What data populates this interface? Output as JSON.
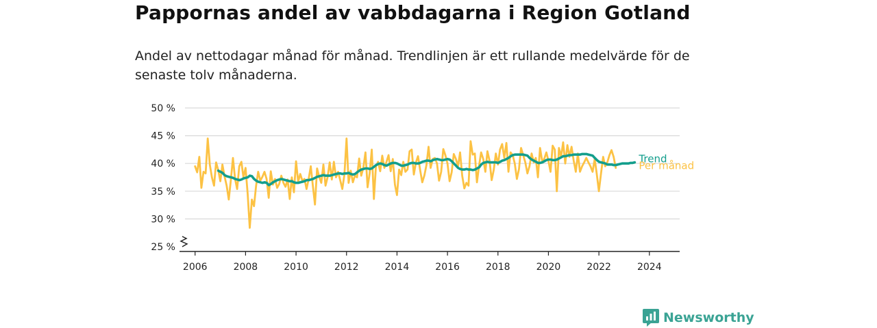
{
  "colors": {
    "monthly": "#fcc244",
    "trend": "#139e8c",
    "grid": "#d9d9d9",
    "axis": "#222222",
    "brand": "#3aa394"
  },
  "brand": {
    "name": "Newsworthy"
  },
  "chart_data": {
    "type": "line",
    "title": "Pappornas andel av vabbdagarna i Region Gotland",
    "subtitle": "Andel av nettodagar månad för månad. Trendlinjen är ett rullande medelvärde för de senaste tolv månaderna.",
    "xlabel": "",
    "ylabel": "",
    "xlim": [
      2005.6,
      2025.2
    ],
    "ylim": [
      25,
      50
    ],
    "grid": true,
    "axis_break": true,
    "x_ticks": [
      2006,
      2008,
      2010,
      2012,
      2014,
      2016,
      2018,
      2020,
      2022,
      2024
    ],
    "x_tick_labels": [
      "2006",
      "2008",
      "2010",
      "2012",
      "2014",
      "2016",
      "2018",
      "2020",
      "2022",
      "2024"
    ],
    "y_ticks": [
      25,
      30,
      35,
      40,
      45,
      50
    ],
    "y_tick_labels": [
      "25 %",
      "30 %",
      "35 %",
      "40 %",
      "45 %",
      "50 %"
    ],
    "series": [
      {
        "name": "Per månad",
        "color": "#fcc244",
        "start": 2006.0,
        "step": 0.0833333,
        "values": [
          39.5,
          38.4,
          41.2,
          35.6,
          38.5,
          38.2,
          44.5,
          39.8,
          37.5,
          36.0,
          40.2,
          38.8,
          36.8,
          39.8,
          37.7,
          36.0,
          33.5,
          37.0,
          41.0,
          37.2,
          35.4,
          39.5,
          40.3,
          37.5,
          39.2,
          34.5,
          28.4,
          33.5,
          32.3,
          36.0,
          38.5,
          36.9,
          37.6,
          38.5,
          37.2,
          33.8,
          38.6,
          36.2,
          37.2,
          35.6,
          36.3,
          37.8,
          36.5,
          35.8,
          37.1,
          33.6,
          37.5,
          34.8,
          40.4,
          36.7,
          38.1,
          36.9,
          37.2,
          35.4,
          37.2,
          39.5,
          36.0,
          32.6,
          39.1,
          37.6,
          36.5,
          39.8,
          36.0,
          37.5,
          40.2,
          37.1,
          40.3,
          37.5,
          38.5,
          37.0,
          35.4,
          38.0,
          44.5,
          36.5,
          38.7,
          36.6,
          37.8,
          37.5,
          40.9,
          37.8,
          39.2,
          42.0,
          35.7,
          38.2,
          42.5,
          33.6,
          39.5,
          40.3,
          38.6,
          41.4,
          39.2,
          40.3,
          41.5,
          38.6,
          40.8,
          36.2,
          34.3,
          38.9,
          37.9,
          40.3,
          38.5,
          38.9,
          42.2,
          42.5,
          38.0,
          40.2,
          41.3,
          38.8,
          36.6,
          37.8,
          39.7,
          43.0,
          39.2,
          40.8,
          41.0,
          40.0,
          36.9,
          38.5,
          42.6,
          41.5,
          40.0,
          36.8,
          38.4,
          41.7,
          40.8,
          39.5,
          42.0,
          37.8,
          35.5,
          36.5,
          36.0,
          44.0,
          41.6,
          41.8,
          36.6,
          39.5,
          42.0,
          40.8,
          38.5,
          42.2,
          40.5,
          37.0,
          38.8,
          41.8,
          39.8,
          42.5,
          43.5,
          41.0,
          43.7,
          38.5,
          42.0,
          41.5,
          40.0,
          37.2,
          39.0,
          42.8,
          41.5,
          40.2,
          38.2,
          39.5,
          41.8,
          40.2,
          41.0,
          37.5,
          42.8,
          40.5,
          40.8,
          42.0,
          40.5,
          38.5,
          43.2,
          42.5,
          35.0,
          42.8,
          41.2,
          43.8,
          40.0,
          43.3,
          41.2,
          43.0,
          40.5,
          38.5,
          41.8,
          38.5,
          39.5,
          40.2,
          41.0,
          40.2,
          39.5,
          38.5,
          40.8,
          38.0,
          35.0,
          38.2,
          41.2,
          39.5,
          40.2,
          41.5,
          42.4,
          41.2,
          39.2
        ]
      },
      {
        "name": "Trend",
        "color": "#139e8c",
        "start": 2006.92,
        "step": 0.0833333,
        "values": [
          38.7,
          38.5,
          38.3,
          37.9,
          37.7,
          37.6,
          37.5,
          37.4,
          37.2,
          37.1,
          37.0,
          37.1,
          37.3,
          37.4,
          37.5,
          37.8,
          37.7,
          37.2,
          36.9,
          36.7,
          36.6,
          36.5,
          36.6,
          36.5,
          36.1,
          36.3,
          36.6,
          36.8,
          37.0,
          37.1,
          37.2,
          37.1,
          37.0,
          36.9,
          36.8,
          36.8,
          36.6,
          36.5,
          36.5,
          36.6,
          36.7,
          36.8,
          37.0,
          37.0,
          37.1,
          37.2,
          37.4,
          37.6,
          37.7,
          37.8,
          37.9,
          37.8,
          37.8,
          37.8,
          37.9,
          38.0,
          38.1,
          38.2,
          38.2,
          38.1,
          38.2,
          38.2,
          38.3,
          38.1,
          38.0,
          38.1,
          38.4,
          38.7,
          38.9,
          39.0,
          39.1,
          39.1,
          39.0,
          39.1,
          39.4,
          39.7,
          39.9,
          40.0,
          39.9,
          39.7,
          39.6,
          39.8,
          40.0,
          40.1,
          40.1,
          40.0,
          39.8,
          39.6,
          39.6,
          39.7,
          39.8,
          40.0,
          40.1,
          40.1,
          40.0,
          40.0,
          40.1,
          40.3,
          40.4,
          40.5,
          40.5,
          40.4,
          40.6,
          40.7,
          40.8,
          40.7,
          40.6,
          40.6,
          40.7,
          40.8,
          40.7,
          40.4,
          40.0,
          39.6,
          39.2,
          39.0,
          38.9,
          38.9,
          39.0,
          38.9,
          38.9,
          38.8,
          38.9,
          39.1,
          39.3,
          39.8,
          40.1,
          40.2,
          40.3,
          40.2,
          40.2,
          40.2,
          40.2,
          40.1,
          40.3,
          40.5,
          40.6,
          40.8,
          41.0,
          41.3,
          41.5,
          41.6,
          41.6,
          41.6,
          41.6,
          41.6,
          41.5,
          41.4,
          41.0,
          40.7,
          40.5,
          40.3,
          40.1,
          40.1,
          40.2,
          40.4,
          40.6,
          40.7,
          40.7,
          40.6,
          40.6,
          40.7,
          40.9,
          41.1,
          41.3,
          41.3,
          41.4,
          41.5,
          41.5,
          41.6,
          41.6,
          41.6,
          41.6,
          41.7,
          41.7,
          41.7,
          41.6,
          41.5,
          41.4,
          41.0,
          40.6,
          40.3,
          40.2,
          40.1,
          40.0,
          39.8,
          39.8,
          39.8,
          39.7,
          39.7,
          39.8,
          39.9,
          40.0,
          40.0,
          40.0,
          40.0,
          40.1,
          40.1,
          40.2
        ]
      }
    ]
  }
}
